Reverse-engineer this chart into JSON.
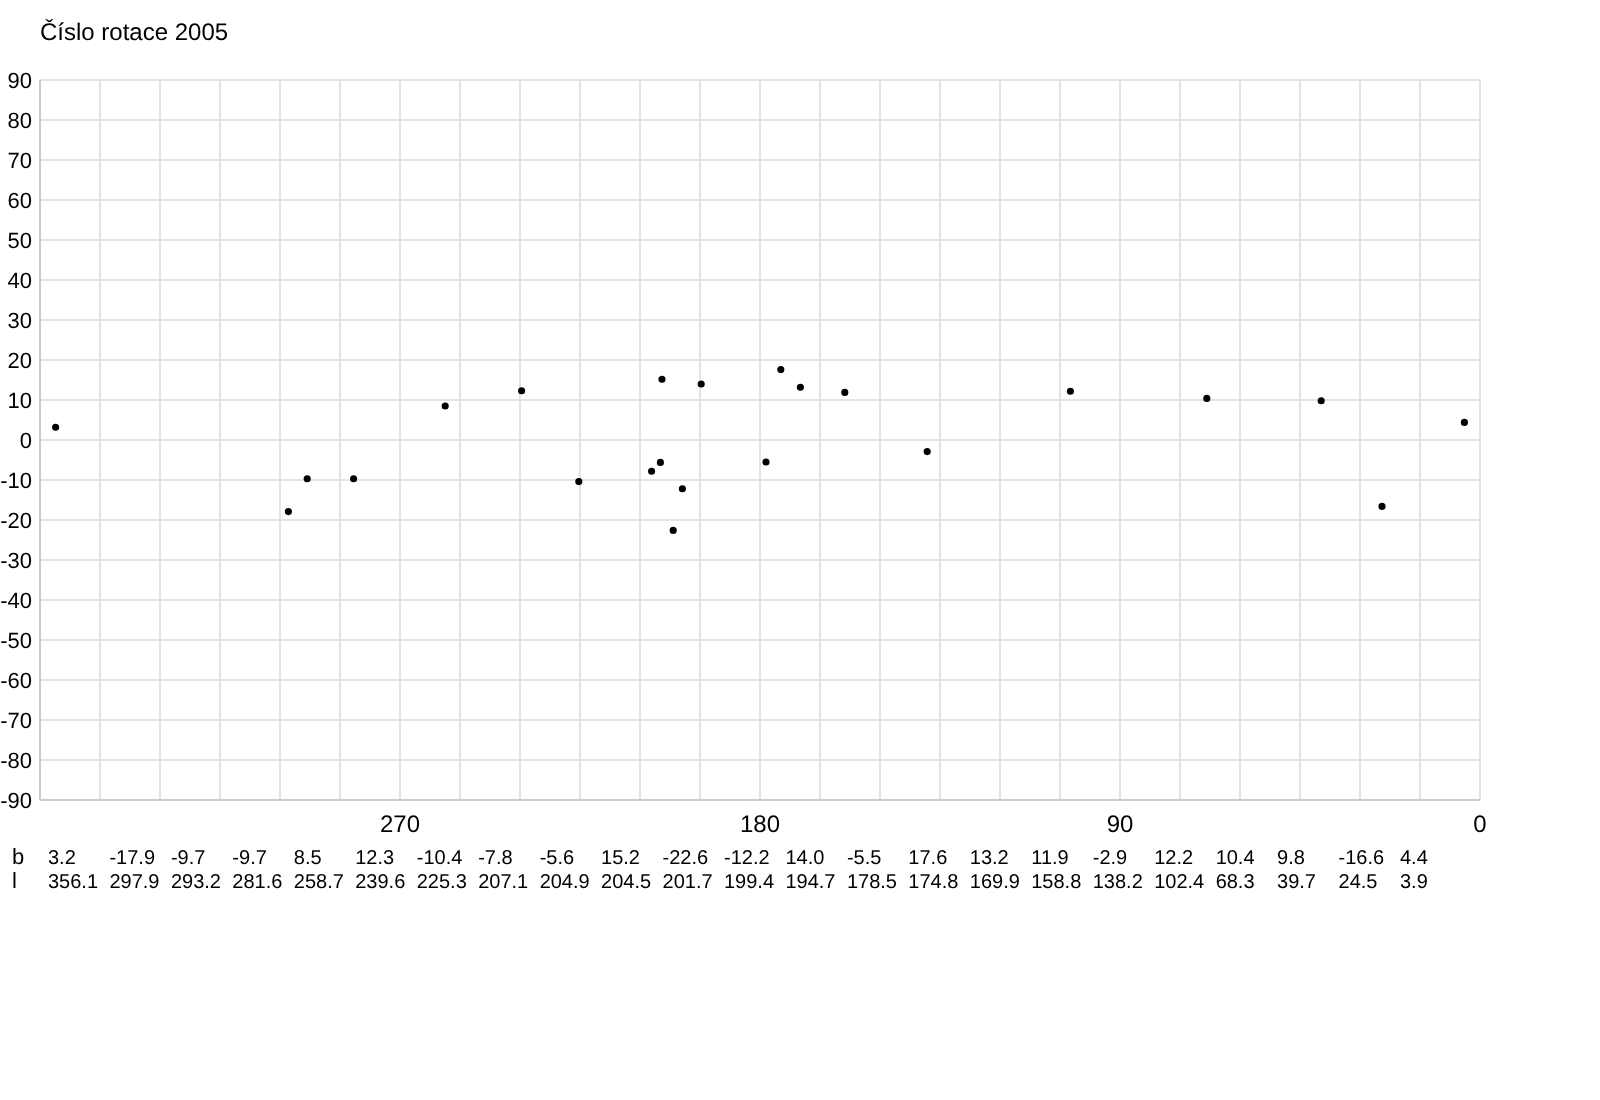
{
  "chart_data": {
    "type": "scatter",
    "title": "Číslo rotace  2005",
    "x": [
      356.1,
      297.9,
      293.2,
      281.6,
      258.7,
      239.6,
      225.3,
      207.1,
      204.9,
      204.5,
      201.7,
      199.4,
      194.7,
      178.5,
      174.8,
      169.9,
      158.8,
      138.2,
      102.4,
      68.3,
      39.7,
      24.5,
      3.9
    ],
    "values": [
      3.2,
      -17.9,
      -9.7,
      -9.7,
      8.5,
      12.3,
      -10.4,
      -7.8,
      -5.6,
      15.2,
      -22.6,
      -12.2,
      14.0,
      -5.5,
      17.6,
      13.2,
      11.9,
      -2.9,
      12.2,
      10.4,
      9.8,
      -16.6,
      4.4
    ],
    "color": "#000000",
    "marker": "circle",
    "annotations": [
      "b",
      "3.2",
      "-17.9",
      "-9.7",
      "-9.7",
      "8.5",
      "12.3",
      "-10.4",
      "-7.8",
      "-5.6",
      "15.2",
      "-22.6",
      "-12.2",
      "14.0",
      "-5.5",
      "17.6",
      "13.2",
      "11.9",
      "-2.9",
      "12.2",
      "10.4",
      "9.8",
      "-16.6",
      "4.4",
      "l",
      "356.1",
      "297.9",
      "293.2",
      "281.6",
      "258.7",
      "239.6",
      "225.3",
      "207.1",
      "204.9",
      "204.5",
      "201.7",
      "199.4",
      "194.7",
      "178.5",
      "174.8",
      "169.9",
      "158.8",
      "138.2",
      "102.4",
      "68.3",
      "39.7",
      "24.5",
      "3.9"
    ],
    "xlim": [
      360,
      0
    ],
    "xticks": [
      {
        "value": 360,
        "label": null
      },
      {
        "value": 345,
        "label": null
      },
      {
        "value": 330,
        "label": null
      },
      {
        "value": 315,
        "label": null
      },
      {
        "value": 300,
        "label": null
      },
      {
        "value": 285,
        "label": null
      },
      270,
      {
        "value": 255,
        "label": null
      },
      {
        "value": 240,
        "label": null
      },
      {
        "value": 225,
        "label": null
      },
      {
        "value": 210,
        "label": null
      },
      {
        "value": 195,
        "label": null
      },
      180,
      {
        "value": 165,
        "label": null
      },
      {
        "value": 150,
        "label": null
      },
      {
        "value": 135,
        "label": null
      },
      {
        "value": 120,
        "label": null
      },
      {
        "value": 105,
        "label": null
      },
      90,
      {
        "value": 75,
        "label": null
      },
      {
        "value": 60,
        "label": null
      },
      {
        "value": 45,
        "label": null
      },
      {
        "value": 30,
        "label": null
      },
      {
        "value": 15,
        "label": null
      },
      0
    ],
    "ylim": [
      -90,
      90
    ],
    "yticks": [
      -90,
      -80,
      -70,
      -60,
      -50,
      -40,
      -30,
      -20,
      -10,
      0,
      10,
      20,
      30,
      40,
      50,
      60,
      70,
      80,
      90
    ],
    "grid": true
  }
}
